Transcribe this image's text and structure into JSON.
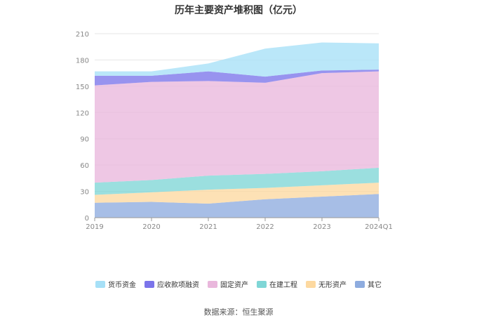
{
  "chart_data": {
    "type": "area",
    "stacked": true,
    "title": "历年主要资产堆积图（亿元）",
    "xlabel": "",
    "ylabel": "",
    "categories": [
      "2019",
      "2020",
      "2021",
      "2022",
      "2023",
      "2024Q1"
    ],
    "ylim": [
      0,
      210
    ],
    "yticks": [
      0,
      30,
      60,
      90,
      120,
      150,
      180,
      210
    ],
    "grid": true,
    "legend_position": "bottom",
    "series": [
      {
        "name": "其它",
        "color": "#8eacdf",
        "values": [
          17,
          18,
          16,
          21,
          24,
          27
        ]
      },
      {
        "name": "无形资产",
        "color": "#fdd9a0",
        "values": [
          9,
          11,
          16,
          13,
          13,
          13
        ]
      },
      {
        "name": "在建工程",
        "color": "#7fd6d6",
        "values": [
          14,
          14,
          16,
          16,
          16,
          17
        ]
      },
      {
        "name": "固定资产",
        "color": "#e9b7dc",
        "values": [
          111,
          112,
          108,
          104,
          112,
          110
        ]
      },
      {
        "name": "应收款项融资",
        "color": "#7b74ea",
        "values": [
          11,
          7,
          11,
          7,
          3,
          2
        ]
      },
      {
        "name": "货币资金",
        "color": "#a6e0f7",
        "values": [
          5,
          5,
          9,
          32,
          32,
          30
        ]
      }
    ],
    "legend_order": [
      "货币资金",
      "应收款项融资",
      "固定资产",
      "在建工程",
      "无形资产",
      "其它"
    ]
  },
  "footer": {
    "source": "数据来源：恒生聚源"
  }
}
